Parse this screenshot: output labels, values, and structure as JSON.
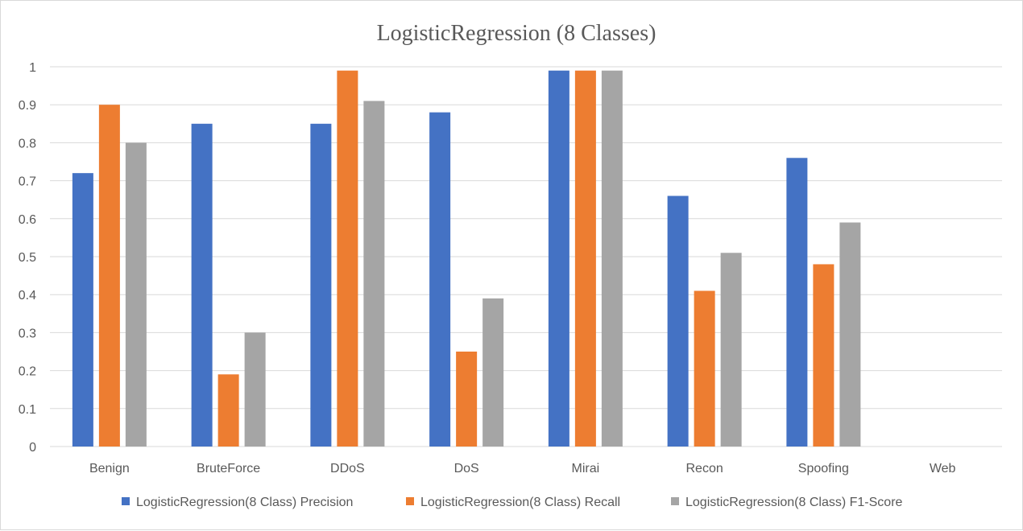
{
  "chart_data": {
    "type": "bar",
    "title": "LogisticRegression (8 Classes)",
    "xlabel": "",
    "ylabel": "",
    "categories": [
      "Benign",
      "BruteForce",
      "DDoS",
      "DoS",
      "Mirai",
      "Recon",
      "Spoofing",
      "Web"
    ],
    "series": [
      {
        "name": "LogisticRegression(8 Class) Precision",
        "color": "#4472c4",
        "values": [
          0.72,
          0.85,
          0.85,
          0.88,
          0.99,
          0.66,
          0.76,
          0
        ]
      },
      {
        "name": "LogisticRegression(8 Class) Recall",
        "color": "#ed7d31",
        "values": [
          0.9,
          0.19,
          0.99,
          0.25,
          0.99,
          0.41,
          0.48,
          0
        ]
      },
      {
        "name": "LogisticRegression(8 Class) F1-Score",
        "color": "#a5a5a5",
        "values": [
          0.8,
          0.3,
          0.91,
          0.39,
          0.99,
          0.51,
          0.59,
          0
        ]
      }
    ],
    "ylim": [
      0,
      1
    ],
    "yticks": [
      "0",
      "0.1",
      "0.2",
      "0.3",
      "0.4",
      "0.5",
      "0.6",
      "0.7",
      "0.8",
      "0.9",
      "1"
    ],
    "grid": true,
    "legend_position": "bottom"
  }
}
